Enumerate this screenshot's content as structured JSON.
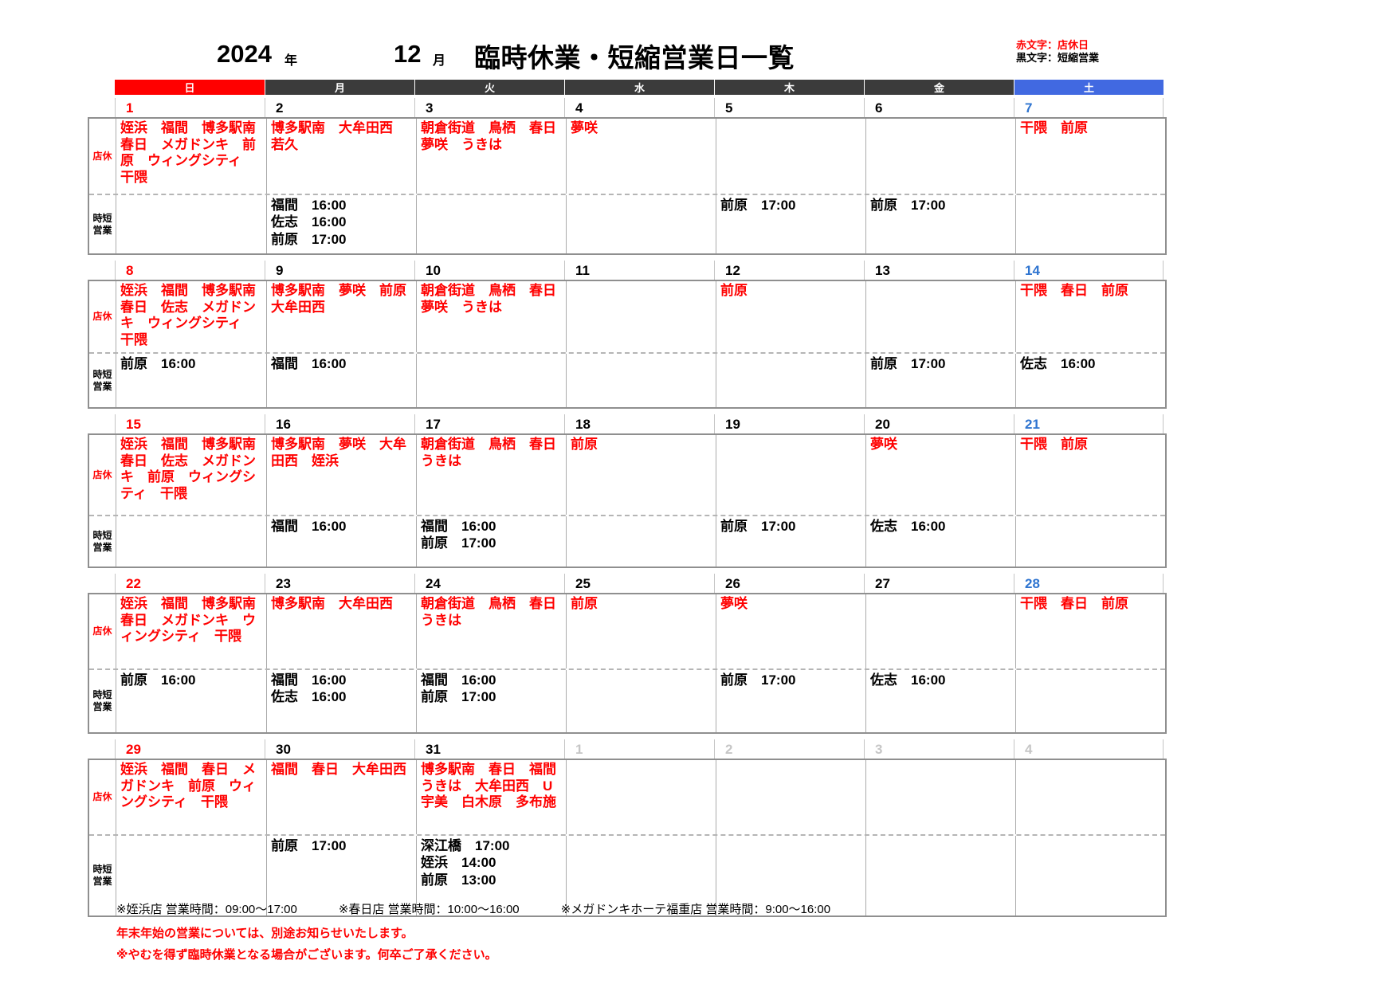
{
  "title": {
    "year": "2024",
    "year_suffix": "年",
    "month": "12",
    "month_suffix": "月",
    "heading": "臨時休業・短縮営業日一覧"
  },
  "legend": {
    "red_note": "赤文字：店休日",
    "black_note": "黒文字：短縮営業"
  },
  "weekday_headers": [
    "日",
    "月",
    "火",
    "水",
    "木",
    "金",
    "土"
  ],
  "row_labels": {
    "closed": "店休",
    "shortened": "時短営業"
  },
  "weeks": [
    {
      "days": [
        {
          "num": "1",
          "closed": "姪浜　福間　博多駅南　春日　メガドンキ　前原　ウィングシティ　干隈",
          "short": []
        },
        {
          "num": "2",
          "closed": "博多駅南　大牟田西　若久",
          "short": [
            "福間　16:00",
            "佐志　16:00",
            "前原　17:00"
          ]
        },
        {
          "num": "3",
          "closed": "朝倉街道　鳥栖　春日　夢咲　うきは",
          "short": []
        },
        {
          "num": "4",
          "closed": "夢咲",
          "short": []
        },
        {
          "num": "5",
          "closed": "",
          "short": [
            "前原　17:00"
          ]
        },
        {
          "num": "6",
          "closed": "",
          "short": [
            "前原　17:00"
          ]
        },
        {
          "num": "7",
          "closed": "干隈　前原",
          "short": []
        }
      ]
    },
    {
      "days": [
        {
          "num": "8",
          "closed": "姪浜　福間　博多駅南　春日　佐志　メガドンキ　ウィングシティ　干隈",
          "short": [
            "前原　16:00"
          ]
        },
        {
          "num": "9",
          "closed": "博多駅南　夢咲　前原　大牟田西",
          "short": [
            "福間　16:00"
          ]
        },
        {
          "num": "10",
          "closed": "朝倉街道　鳥栖　春日　夢咲　うきは",
          "short": []
        },
        {
          "num": "11",
          "closed": "",
          "short": []
        },
        {
          "num": "12",
          "closed": "前原",
          "short": []
        },
        {
          "num": "13",
          "closed": "",
          "short": [
            "前原　17:00"
          ]
        },
        {
          "num": "14",
          "closed": "干隈　春日　前原",
          "short": [
            "佐志　16:00"
          ]
        }
      ]
    },
    {
      "days": [
        {
          "num": "15",
          "closed": "姪浜　福間　博多駅南　春日　佐志　メガドンキ　前原　ウィングシティ　干隈",
          "short": []
        },
        {
          "num": "16",
          "closed": "博多駅南　夢咲　大牟田西　姪浜",
          "short": [
            "福間　16:00"
          ]
        },
        {
          "num": "17",
          "closed": "朝倉街道　鳥栖　春日　うきは",
          "short": [
            "福間　16:00",
            "前原　17:00"
          ]
        },
        {
          "num": "18",
          "closed": "前原",
          "short": []
        },
        {
          "num": "19",
          "closed": "",
          "short": [
            "前原　17:00"
          ]
        },
        {
          "num": "20",
          "closed": "夢咲",
          "short": [
            "佐志　16:00"
          ]
        },
        {
          "num": "21",
          "closed": "干隈　前原",
          "short": []
        }
      ]
    },
    {
      "days": [
        {
          "num": "22",
          "closed": "姪浜　福間　博多駅南　春日　メガドンキ　ウィングシティ　干隈",
          "short": [
            "前原　16:00"
          ]
        },
        {
          "num": "23",
          "closed": "博多駅南　大牟田西",
          "short": [
            "福間　16:00",
            "佐志　16:00"
          ]
        },
        {
          "num": "24",
          "closed": "朝倉街道　鳥栖　春日　うきは",
          "short": [
            "福間　16:00",
            "前原　17:00"
          ]
        },
        {
          "num": "25",
          "closed": "前原",
          "short": []
        },
        {
          "num": "26",
          "closed": "夢咲",
          "short": [
            "前原　17:00"
          ]
        },
        {
          "num": "27",
          "closed": "",
          "short": [
            "佐志　16:00"
          ]
        },
        {
          "num": "28",
          "closed": "干隈　春日　前原",
          "short": []
        }
      ]
    },
    {
      "days": [
        {
          "num": "29",
          "closed": "姪浜　福間　春日　メガドンキ　前原　ウィングシティ　干隈",
          "short": []
        },
        {
          "num": "30",
          "closed": "福間　春日　大牟田西",
          "short": [
            "前原　17:00"
          ]
        },
        {
          "num": "31",
          "closed": "博多駅南　春日　福間　うきは　大牟田西　U宇美　白木原　多布施",
          "short": [
            "深江橋　17:00",
            "姪浜　14:00",
            "前原　13:00"
          ]
        },
        {
          "num": "1",
          "muted": true,
          "closed": "",
          "short": []
        },
        {
          "num": "2",
          "muted": true,
          "closed": "",
          "short": []
        },
        {
          "num": "3",
          "muted": true,
          "closed": "",
          "short": []
        },
        {
          "num": "4",
          "muted": true,
          "closed": "",
          "short": []
        }
      ]
    }
  ],
  "footnotes": {
    "hours": [
      "※姪浜店 営業時間：09:00～17:00",
      "※春日店 営業時間：10:00～16:00",
      "※メガドンキホーテ福重店 営業時間：9:00～16:00"
    ],
    "red_notes": [
      "年末年始の営業については、別途お知らせいたします。",
      "※やむを得ず臨時休業となる場合がございます。何卒ご了承ください。"
    ]
  },
  "colors": {
    "sunday": "#FF0000",
    "weekday_header": "#3B3B3B",
    "saturday_header": "#4169E1",
    "saturday_number": "#2E74D0",
    "red_text": "#FF0000",
    "muted_number": "#C6C6C6"
  }
}
